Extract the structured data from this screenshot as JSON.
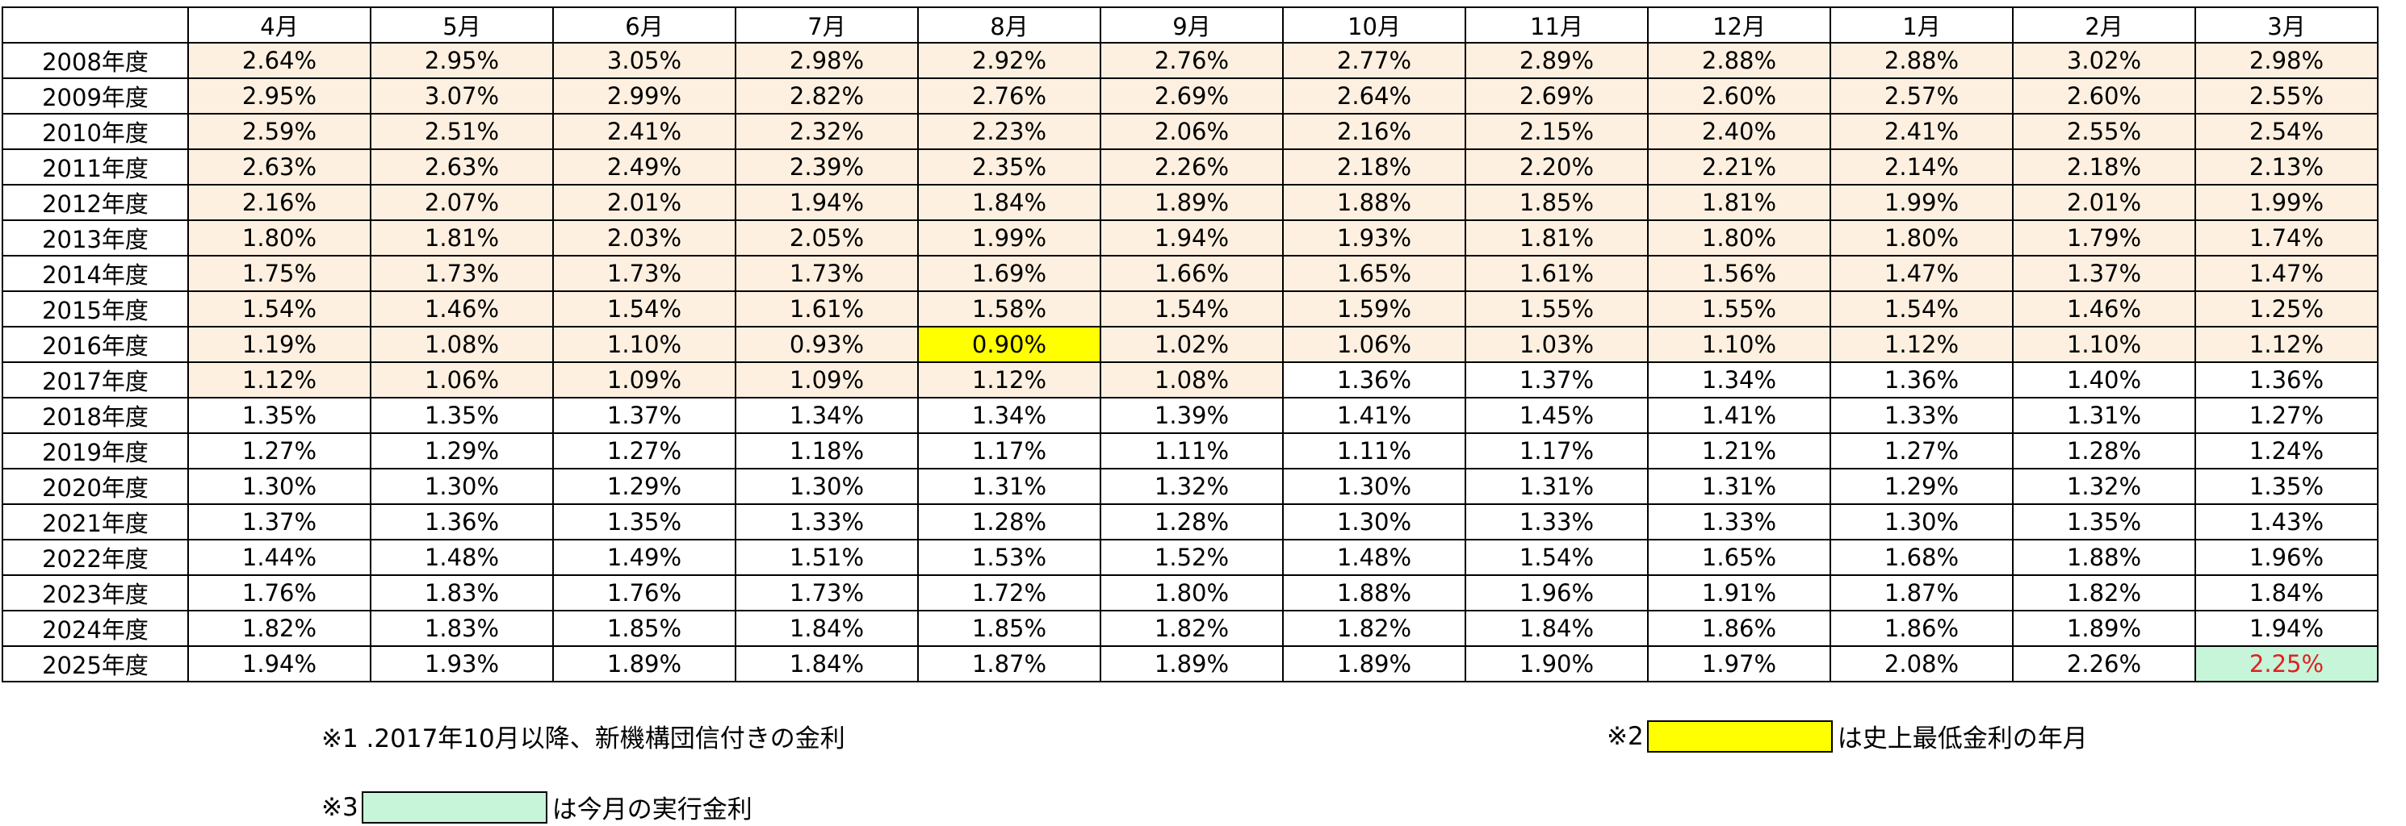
{
  "table": {
    "corner_label": "",
    "months": [
      "4月",
      "5月",
      "6月",
      "7月",
      "8月",
      "9月",
      "10月",
      "11月",
      "12月",
      "1月",
      "2月",
      "3月"
    ],
    "rows": [
      {
        "year": "2008年度",
        "values": [
          "2.64%",
          "2.95%",
          "3.05%",
          "2.98%",
          "2.92%",
          "2.76%",
          "2.77%",
          "2.89%",
          "2.88%",
          "2.88%",
          "3.02%",
          "2.98%"
        ],
        "shaded_count": 12
      },
      {
        "year": "2009年度",
        "values": [
          "2.95%",
          "3.07%",
          "2.99%",
          "2.82%",
          "2.76%",
          "2.69%",
          "2.64%",
          "2.69%",
          "2.60%",
          "2.57%",
          "2.60%",
          "2.55%"
        ],
        "shaded_count": 12
      },
      {
        "year": "2010年度",
        "values": [
          "2.59%",
          "2.51%",
          "2.41%",
          "2.32%",
          "2.23%",
          "2.06%",
          "2.16%",
          "2.15%",
          "2.40%",
          "2.41%",
          "2.55%",
          "2.54%"
        ],
        "shaded_count": 12
      },
      {
        "year": "2011年度",
        "values": [
          "2.63%",
          "2.63%",
          "2.49%",
          "2.39%",
          "2.35%",
          "2.26%",
          "2.18%",
          "2.20%",
          "2.21%",
          "2.14%",
          "2.18%",
          "2.13%"
        ],
        "shaded_count": 12
      },
      {
        "year": "2012年度",
        "values": [
          "2.16%",
          "2.07%",
          "2.01%",
          "1.94%",
          "1.84%",
          "1.89%",
          "1.88%",
          "1.85%",
          "1.81%",
          "1.99%",
          "2.01%",
          "1.99%"
        ],
        "shaded_count": 12
      },
      {
        "year": "2013年度",
        "values": [
          "1.80%",
          "1.81%",
          "2.03%",
          "2.05%",
          "1.99%",
          "1.94%",
          "1.93%",
          "1.81%",
          "1.80%",
          "1.80%",
          "1.79%",
          "1.74%"
        ],
        "shaded_count": 12
      },
      {
        "year": "2014年度",
        "values": [
          "1.75%",
          "1.73%",
          "1.73%",
          "1.73%",
          "1.69%",
          "1.66%",
          "1.65%",
          "1.61%",
          "1.56%",
          "1.47%",
          "1.37%",
          "1.47%"
        ],
        "shaded_count": 12
      },
      {
        "year": "2015年度",
        "values": [
          "1.54%",
          "1.46%",
          "1.54%",
          "1.61%",
          "1.58%",
          "1.54%",
          "1.59%",
          "1.55%",
          "1.55%",
          "1.54%",
          "1.46%",
          "1.25%"
        ],
        "shaded_count": 12
      },
      {
        "year": "2016年度",
        "values": [
          "1.19%",
          "1.08%",
          "1.10%",
          "0.93%",
          "0.90%",
          "1.02%",
          "1.06%",
          "1.03%",
          "1.10%",
          "1.12%",
          "1.10%",
          "1.12%"
        ],
        "shaded_count": 12
      },
      {
        "year": "2017年度",
        "values": [
          "1.12%",
          "1.06%",
          "1.09%",
          "1.09%",
          "1.12%",
          "1.08%",
          "1.36%",
          "1.37%",
          "1.34%",
          "1.36%",
          "1.40%",
          "1.36%"
        ],
        "shaded_count": 6
      },
      {
        "year": "2018年度",
        "values": [
          "1.35%",
          "1.35%",
          "1.37%",
          "1.34%",
          "1.34%",
          "1.39%",
          "1.41%",
          "1.45%",
          "1.41%",
          "1.33%",
          "1.31%",
          "1.27%"
        ],
        "shaded_count": 0
      },
      {
        "year": "2019年度",
        "values": [
          "1.27%",
          "1.29%",
          "1.27%",
          "1.18%",
          "1.17%",
          "1.11%",
          "1.11%",
          "1.17%",
          "1.21%",
          "1.27%",
          "1.28%",
          "1.24%"
        ],
        "shaded_count": 0
      },
      {
        "year": "2020年度",
        "values": [
          "1.30%",
          "1.30%",
          "1.29%",
          "1.30%",
          "1.31%",
          "1.32%",
          "1.30%",
          "1.31%",
          "1.31%",
          "1.29%",
          "1.32%",
          "1.35%"
        ],
        "shaded_count": 0
      },
      {
        "year": "2021年度",
        "values": [
          "1.37%",
          "1.36%",
          "1.35%",
          "1.33%",
          "1.28%",
          "1.28%",
          "1.30%",
          "1.33%",
          "1.33%",
          "1.30%",
          "1.35%",
          "1.43%"
        ],
        "shaded_count": 0
      },
      {
        "year": "2022年度",
        "values": [
          "1.44%",
          "1.48%",
          "1.49%",
          "1.51%",
          "1.53%",
          "1.52%",
          "1.48%",
          "1.54%",
          "1.65%",
          "1.68%",
          "1.88%",
          "1.96%"
        ],
        "shaded_count": 0
      },
      {
        "year": "2023年度",
        "values": [
          "1.76%",
          "1.83%",
          "1.76%",
          "1.73%",
          "1.72%",
          "1.80%",
          "1.88%",
          "1.96%",
          "1.91%",
          "1.87%",
          "1.82%",
          "1.84%"
        ],
        "shaded_count": 0
      },
      {
        "year": "2024年度",
        "values": [
          "1.82%",
          "1.83%",
          "1.85%",
          "1.84%",
          "1.85%",
          "1.82%",
          "1.82%",
          "1.84%",
          "1.86%",
          "1.86%",
          "1.89%",
          "1.94%"
        ],
        "shaded_count": 0
      },
      {
        "year": "2025年度",
        "values": [
          "1.94%",
          "1.93%",
          "1.89%",
          "1.84%",
          "1.87%",
          "1.89%",
          "1.89%",
          "1.90%",
          "1.97%",
          "2.08%",
          "2.26%",
          "2.25%"
        ],
        "shaded_count": 0
      }
    ],
    "record_low": {
      "row": 8,
      "col": 4
    },
    "current": {
      "row": 17,
      "col": 11
    }
  },
  "notes": {
    "note1": "※1 .2017年10月以降、新機構団信付きの金利",
    "note2_prefix": "※2",
    "note2_text": "は史上最低金利の年月",
    "note3_prefix": "※3",
    "note3_text": "は今月の実行金利"
  },
  "colors": {
    "shaded": "#fdf0e0",
    "record_low": "#ffff00",
    "current_bg": "#c6f5d9",
    "current_text": "#e02020"
  }
}
